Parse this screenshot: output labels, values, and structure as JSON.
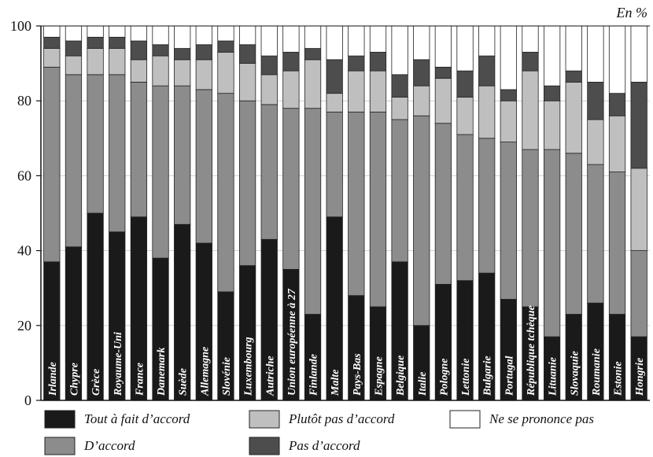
{
  "chart_data": {
    "type": "bar",
    "stacked": true,
    "unit_label": "En %",
    "ylim": [
      0,
      100
    ],
    "yticks": [
      "0",
      "20",
      "40",
      "60",
      "80",
      "100"
    ],
    "categories": [
      "Irlande",
      "Chypre",
      "Grèce",
      "Royaume-Uni",
      "France",
      "Danemark",
      "Suède",
      "Allemagne",
      "Slovénie",
      "Luxembourg",
      "Autriche",
      "Union européenne à 27",
      "Finlande",
      "Malte",
      "Pays-Bas",
      "Espagne",
      "Belgique",
      "Italie",
      "Pologne",
      "Lettonie",
      "Bulgarie",
      "Portugal",
      "République tchèque",
      "Lituanie",
      "Slovaquie",
      "Roumanie",
      "Estonie",
      "Hongrie"
    ],
    "series": [
      {
        "name": "Tout à fait d’accord",
        "color": "#1a1a1a",
        "values": [
          37,
          41,
          50,
          45,
          49,
          38,
          47,
          42,
          29,
          36,
          43,
          35,
          23,
          49,
          28,
          25,
          37,
          20,
          31,
          32,
          34,
          27,
          25,
          17,
          23,
          26,
          23,
          17
        ]
      },
      {
        "name": "D’accord",
        "color": "#8c8c8c",
        "values": [
          52,
          46,
          37,
          42,
          36,
          46,
          37,
          41,
          53,
          44,
          36,
          43,
          55,
          28,
          49,
          52,
          38,
          56,
          43,
          39,
          36,
          42,
          42,
          50,
          43,
          37,
          38,
          23
        ]
      },
      {
        "name": "Plutôt pas d’accord",
        "color": "#bfbfbf",
        "values": [
          5,
          5,
          7,
          7,
          6,
          8,
          7,
          8,
          11,
          10,
          8,
          10,
          13,
          5,
          11,
          11,
          6,
          8,
          12,
          10,
          14,
          11,
          21,
          13,
          19,
          12,
          15,
          22
        ]
      },
      {
        "name": "Pas d’accord",
        "color": "#4d4d4d",
        "values": [
          3,
          4,
          3,
          3,
          5,
          3,
          3,
          4,
          3,
          5,
          5,
          5,
          3,
          9,
          4,
          5,
          6,
          7,
          3,
          7,
          8,
          3,
          5,
          4,
          3,
          10,
          6,
          23
        ]
      },
      {
        "name": "Ne se prononce pas",
        "color": "#ffffff",
        "values": [
          3,
          4,
          3,
          3,
          4,
          5,
          6,
          5,
          4,
          5,
          8,
          7,
          6,
          9,
          8,
          7,
          13,
          9,
          11,
          12,
          8,
          17,
          7,
          16,
          12,
          15,
          18,
          15
        ]
      }
    ],
    "legend": {
      "placement": "bottom",
      "order": [
        "Tout à fait d’accord",
        "Plutôt pas d’accord",
        "Ne se prononce pas",
        "D’accord",
        "Pas d’accord"
      ]
    }
  }
}
